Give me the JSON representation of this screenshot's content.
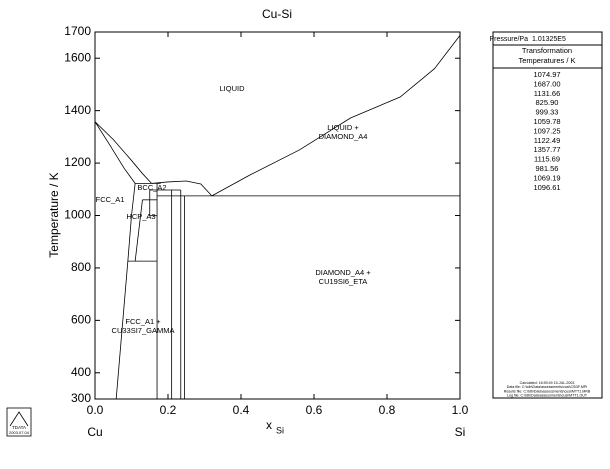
{
  "chart_data": {
    "type": "line",
    "title": "Cu-Si",
    "x_label": "x",
    "x_label_sub": "Si",
    "y_label": "Temperature / K",
    "end_labels": [
      "Cu",
      "Si"
    ],
    "xlim": [
      0,
      1
    ],
    "ylim": [
      300,
      1700
    ],
    "xticks": [
      {
        "value": 0,
        "label": "0.0"
      },
      0.2,
      0.4,
      0.6,
      0.8,
      {
        "value": 1,
        "label": "1.0"
      }
    ],
    "yticks": [
      300,
      400,
      600,
      800,
      1000,
      1200,
      1400,
      1600,
      1700
    ],
    "series": [
      {
        "color": "#000000",
        "x": [
          0,
          0.05,
          0.1,
          0.13,
          0.155
        ],
        "values": [
          1357.77,
          1290,
          1210,
          1160,
          1122.49
        ]
      },
      {
        "color": "#000000",
        "x": [
          0,
          0.04,
          0.08,
          0.11
        ],
        "values": [
          1357.77,
          1270,
          1180,
          1122.49
        ]
      },
      {
        "color": "#000000",
        "x": [
          0.11,
          0.1,
          0.09,
          0.058
        ],
        "values": [
          1122.49,
          1000,
          825.9,
          300
        ]
      },
      {
        "color": "#000000",
        "x": [
          0.155,
          0.2,
          0.25,
          0.29,
          0.32
        ],
        "values": [
          1122.49,
          1128,
          1131.66,
          1120,
          1074.97
        ]
      },
      {
        "color": "#000000",
        "x": [
          0.32,
          0.37,
          0.425,
          0.56,
          0.7,
          0.836,
          0.93,
          1
        ],
        "values": [
          1074.97,
          1113,
          1155,
          1250,
          1372,
          1452,
          1560,
          1687
        ]
      },
      {
        "color": "#000000",
        "x": [
          0.17,
          1
        ],
        "values": [
          1074.97,
          1074.97
        ]
      },
      {
        "color": "#000000",
        "x": [
          0.11,
          0.18
        ],
        "values": [
          1122.49,
          1122.49
        ]
      },
      {
        "color": "#000000",
        "x": [
          0.15,
          0.235
        ],
        "values": [
          1097.25,
          1097.25
        ]
      },
      {
        "color": "#000000",
        "x": [
          0.13,
          0.17
        ],
        "values": [
          1059.78,
          1059.78
        ]
      },
      {
        "color": "#000000",
        "x": [
          0.15,
          0.17
        ],
        "values": [
          999.33,
          999.33
        ]
      },
      {
        "color": "#000000",
        "x": [
          0.09,
          0.17
        ],
        "values": [
          825.9,
          825.9
        ]
      },
      {
        "color": "#000000",
        "x": [
          0.13,
          0.11
        ],
        "values": [
          1059.78,
          825.9
        ]
      },
      {
        "color": "#000000",
        "x": [
          0.15,
          0.15
        ],
        "values": [
          1097.25,
          999.33
        ]
      },
      {
        "color": "#000000",
        "x": [
          0.17,
          0.17
        ],
        "values": [
          300,
          1122.49
        ]
      },
      {
        "color": "#000000",
        "x": [
          0.21,
          0.21
        ],
        "values": [
          300,
          1097.25
        ]
      },
      {
        "color": "#000000",
        "x": [
          0.235,
          0.235
        ],
        "values": [
          300,
          1097.25
        ]
      },
      {
        "color": "#000000",
        "x": [
          0.245,
          0.245
        ],
        "values": [
          300,
          1074.97
        ]
      }
    ],
    "phase_labels": [
      [
        "LIQUID"
      ],
      [
        "LIQUID +",
        "DIAMOND_A4"
      ],
      [
        "FCC_A1"
      ],
      [
        "BCC_A2"
      ],
      [
        "HCP_A3"
      ],
      [
        "FCC_A1 +",
        "CU33SI7_GAMMA"
      ],
      [
        "DIAMOND_A4 +",
        "CU19SI6_ETA"
      ]
    ]
  },
  "panel": {
    "pressure_label": "Pressure/Pa",
    "pressure_value": "1.01325E5",
    "heading": [
      "Transformation",
      "Temperatures / K"
    ],
    "temperatures": [
      "1074.97",
      "1687.00",
      "1131.66",
      "825.90",
      "999.33",
      "1059.78",
      "1097.25",
      "1122.49",
      "1357.77",
      "1115.69",
      "981.56",
      "1069.19",
      "1096.61"
    ],
    "footer": [
      "Calculated: 16:59:49 15-JUL-2003",
      "Data file: C:\\tdb\\Data\\assessments\\cusi\\CSDF.MPI",
      "Results file: C:\\tdb\\Data\\assessments\\cusi\\MTT1.MRB",
      "Log file: C:\\tdb\\Data\\assessments\\cusi\\MTT1.OUT"
    ]
  },
  "logo": {
    "name": "TDATA",
    "date": "2003.07.04"
  }
}
